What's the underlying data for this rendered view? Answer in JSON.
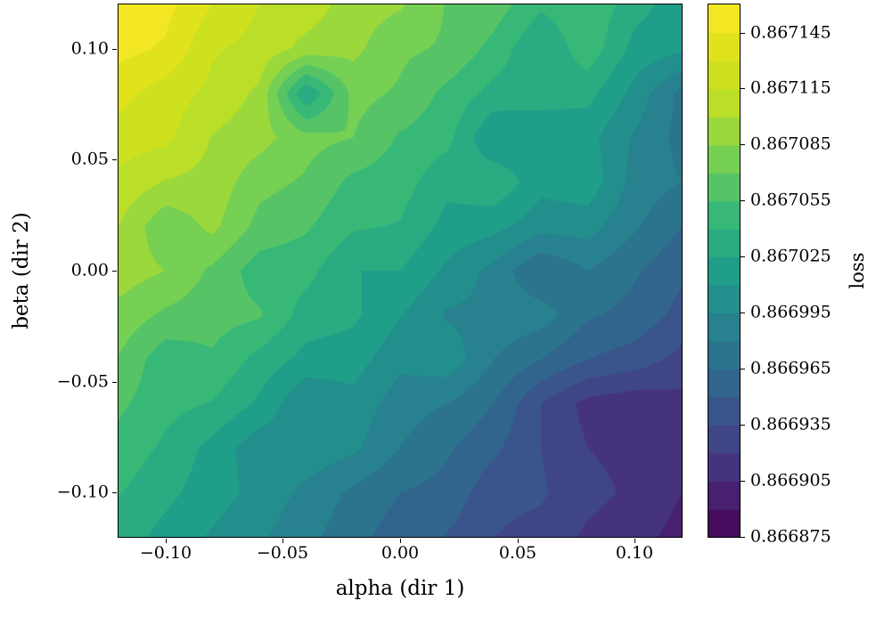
{
  "figure": {
    "background": "#ffffff"
  },
  "axes": {
    "xlabel": "alpha (dir 1)",
    "ylabel": "beta (dir 2)",
    "xticks": [
      {
        "value": -0.1,
        "label": "−0.10"
      },
      {
        "value": -0.05,
        "label": "−0.05"
      },
      {
        "value": 0.0,
        "label": "0.00"
      },
      {
        "value": 0.05,
        "label": "0.05"
      },
      {
        "value": 0.1,
        "label": "0.10"
      }
    ],
    "yticks": [
      {
        "value": 0.1,
        "label": "0.10"
      },
      {
        "value": 0.05,
        "label": "0.05"
      },
      {
        "value": 0.0,
        "label": "0.00"
      },
      {
        "value": -0.05,
        "label": "−0.05"
      },
      {
        "value": -0.1,
        "label": "−0.10"
      }
    ]
  },
  "colorbar": {
    "label": "loss",
    "ticks": [
      {
        "value": 0.867145,
        "label": "0.867145"
      },
      {
        "value": 0.867115,
        "label": "0.867115"
      },
      {
        "value": 0.867085,
        "label": "0.867085"
      },
      {
        "value": 0.867055,
        "label": "0.867055"
      },
      {
        "value": 0.867025,
        "label": "0.867025"
      },
      {
        "value": 0.866995,
        "label": "0.866995"
      },
      {
        "value": 0.866965,
        "label": "0.866965"
      },
      {
        "value": 0.866935,
        "label": "0.866935"
      },
      {
        "value": 0.866905,
        "label": "0.866905"
      },
      {
        "value": 0.866875,
        "label": "0.866875"
      }
    ]
  },
  "chart_data": {
    "type": "heatmap",
    "subtype": "filled-contour",
    "title": "",
    "xlabel": "alpha (dir 1)",
    "ylabel": "beta (dir 2)",
    "colorbar_label": "loss",
    "xlim": [
      -0.12,
      0.12
    ],
    "ylim": [
      -0.12,
      0.12
    ],
    "x": [
      -0.12,
      -0.1,
      -0.08,
      -0.06,
      -0.04,
      -0.02,
      0.0,
      0.02,
      0.04,
      0.06,
      0.08,
      0.1,
      0.12
    ],
    "y": [
      0.12,
      0.1,
      0.08,
      0.06,
      0.04,
      0.02,
      0.0,
      -0.02,
      -0.04,
      -0.06,
      -0.08,
      -0.1,
      -0.12
    ],
    "y_order": "top-to-bottom",
    "z": [
      [
        0.867157,
        0.86715,
        0.86713,
        0.867115,
        0.867109,
        0.867092,
        0.867087,
        0.867069,
        0.867063,
        0.867043,
        0.867053,
        0.867031,
        0.867017
      ],
      [
        0.86715,
        0.867143,
        0.867117,
        0.86711,
        0.867095,
        0.867089,
        0.867073,
        0.867068,
        0.86705,
        0.867025,
        0.86705,
        0.86702,
        0.867013
      ],
      [
        0.867135,
        0.867123,
        0.867111,
        0.867097,
        0.867025,
        0.867075,
        0.867068,
        0.867051,
        0.867035,
        0.86703,
        0.86703,
        0.867005,
        0.866975
      ],
      [
        0.867123,
        0.867119,
        0.867099,
        0.867091,
        0.867075,
        0.86707,
        0.867053,
        0.867045,
        0.86701,
        0.867017,
        0.867015,
        0.866993,
        0.866975
      ],
      [
        0.867111,
        0.867099,
        0.867095,
        0.867075,
        0.867068,
        0.867051,
        0.867047,
        0.867029,
        0.867037,
        0.867015,
        0.86702,
        0.866989,
        0.86698
      ],
      [
        0.8671,
        0.867073,
        0.867089,
        0.867065,
        0.867057,
        0.867042,
        0.867039,
        0.86702,
        0.867015,
        0.867001,
        0.867001,
        0.866982,
        0.866965
      ],
      [
        0.867093,
        0.867085,
        0.867067,
        0.867047,
        0.867045,
        0.867025,
        0.867025,
        0.867007,
        0.86699,
        0.866965,
        0.86698,
        0.866967,
        0.866953
      ],
      [
        0.86708,
        0.867067,
        0.867061,
        0.867057,
        0.867033,
        0.867028,
        0.867011,
        0.866993,
        0.866991,
        0.866987,
        0.866967,
        0.86696,
        0.866945
      ],
      [
        0.867069,
        0.867045,
        0.867053,
        0.867035,
        0.86702,
        0.867017,
        0.866999,
        0.867005,
        0.86698,
        0.866965,
        0.86695,
        0.866943,
        0.86693
      ],
      [
        0.867058,
        0.867045,
        0.867039,
        0.867022,
        0.866995,
        0.867005,
        0.866987,
        0.86698,
        0.866965,
        0.866935,
        0.866915,
        0.86691,
        0.866915
      ],
      [
        0.86705,
        0.867037,
        0.86702,
        0.867,
        0.867005,
        0.866998,
        0.86698,
        0.866967,
        0.866953,
        0.866935,
        0.86692,
        0.866915,
        0.866913
      ],
      [
        0.867041,
        0.867029,
        0.867017,
        0.867005,
        0.866991,
        0.866977,
        0.866965,
        0.86696,
        0.86694,
        0.866937,
        0.866925,
        0.866917,
        0.866905
      ],
      [
        0.867033,
        0.86702,
        0.867008,
        0.866997,
        0.866985,
        0.86697,
        0.866957,
        0.866949,
        0.866935,
        0.86693,
        0.866917,
        0.86691,
        0.8669
      ]
    ],
    "levels": {
      "min": 0.866875,
      "max": 0.86716,
      "step": 1.5e-05
    },
    "legend_position": "colorbar-right",
    "grid": false,
    "colormap": "viridis",
    "colormap_stops": [
      "#440154",
      "#482878",
      "#3e4a89",
      "#31688e",
      "#26828e",
      "#1f9e89",
      "#35b779",
      "#6ece58",
      "#b5de2b",
      "#d8e219",
      "#fde725"
    ]
  }
}
